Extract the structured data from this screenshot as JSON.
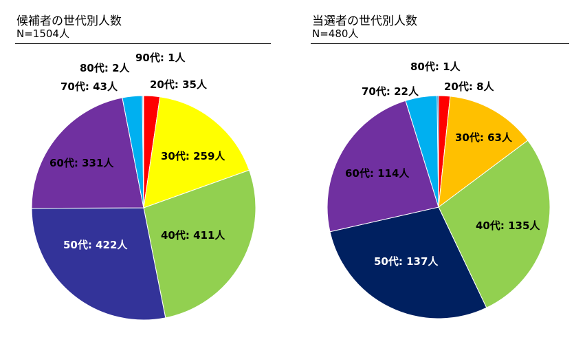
{
  "chart_data": [
    {
      "type": "pie",
      "title": "候補者の世代別人数",
      "subtitle": "N=1504人",
      "slices": [
        {
          "label": "20代",
          "value": 35,
          "value_text": "35人",
          "color": "#ff0000"
        },
        {
          "label": "30代",
          "value": 259,
          "value_text": "259人",
          "color": "#ffff00"
        },
        {
          "label": "40代",
          "value": 411,
          "value_text": "411人",
          "color": "#92d050"
        },
        {
          "label": "50代",
          "value": 422,
          "value_text": "422人",
          "color": "#333399"
        },
        {
          "label": "60代",
          "value": 331,
          "value_text": "331人",
          "color": "#7030a0"
        },
        {
          "label": "70代",
          "value": 43,
          "value_text": "43人",
          "color": "#00b0f0"
        },
        {
          "label": "80代",
          "value": 2,
          "value_text": "2人",
          "color": "#0070c0"
        },
        {
          "label": "90代",
          "value": 1,
          "value_text": "1人",
          "color": "#002060"
        }
      ]
    },
    {
      "type": "pie",
      "title": "当選者の世代別人数",
      "subtitle": "N=480人",
      "slices": [
        {
          "label": "20代",
          "value": 8,
          "value_text": "8人",
          "color": "#ff0000"
        },
        {
          "label": "30代",
          "value": 63,
          "value_text": "63人",
          "color": "#ffc000"
        },
        {
          "label": "40代",
          "value": 135,
          "value_text": "135人",
          "color": "#92d050"
        },
        {
          "label": "50代",
          "value": 137,
          "value_text": "137人",
          "color": "#002060"
        },
        {
          "label": "60代",
          "value": 114,
          "value_text": "114人",
          "color": "#7030a0"
        },
        {
          "label": "70代",
          "value": 22,
          "value_text": "22人",
          "color": "#00b0f0"
        },
        {
          "label": "80代",
          "value": 1,
          "value_text": "1人",
          "color": "#0070c0"
        }
      ]
    }
  ]
}
